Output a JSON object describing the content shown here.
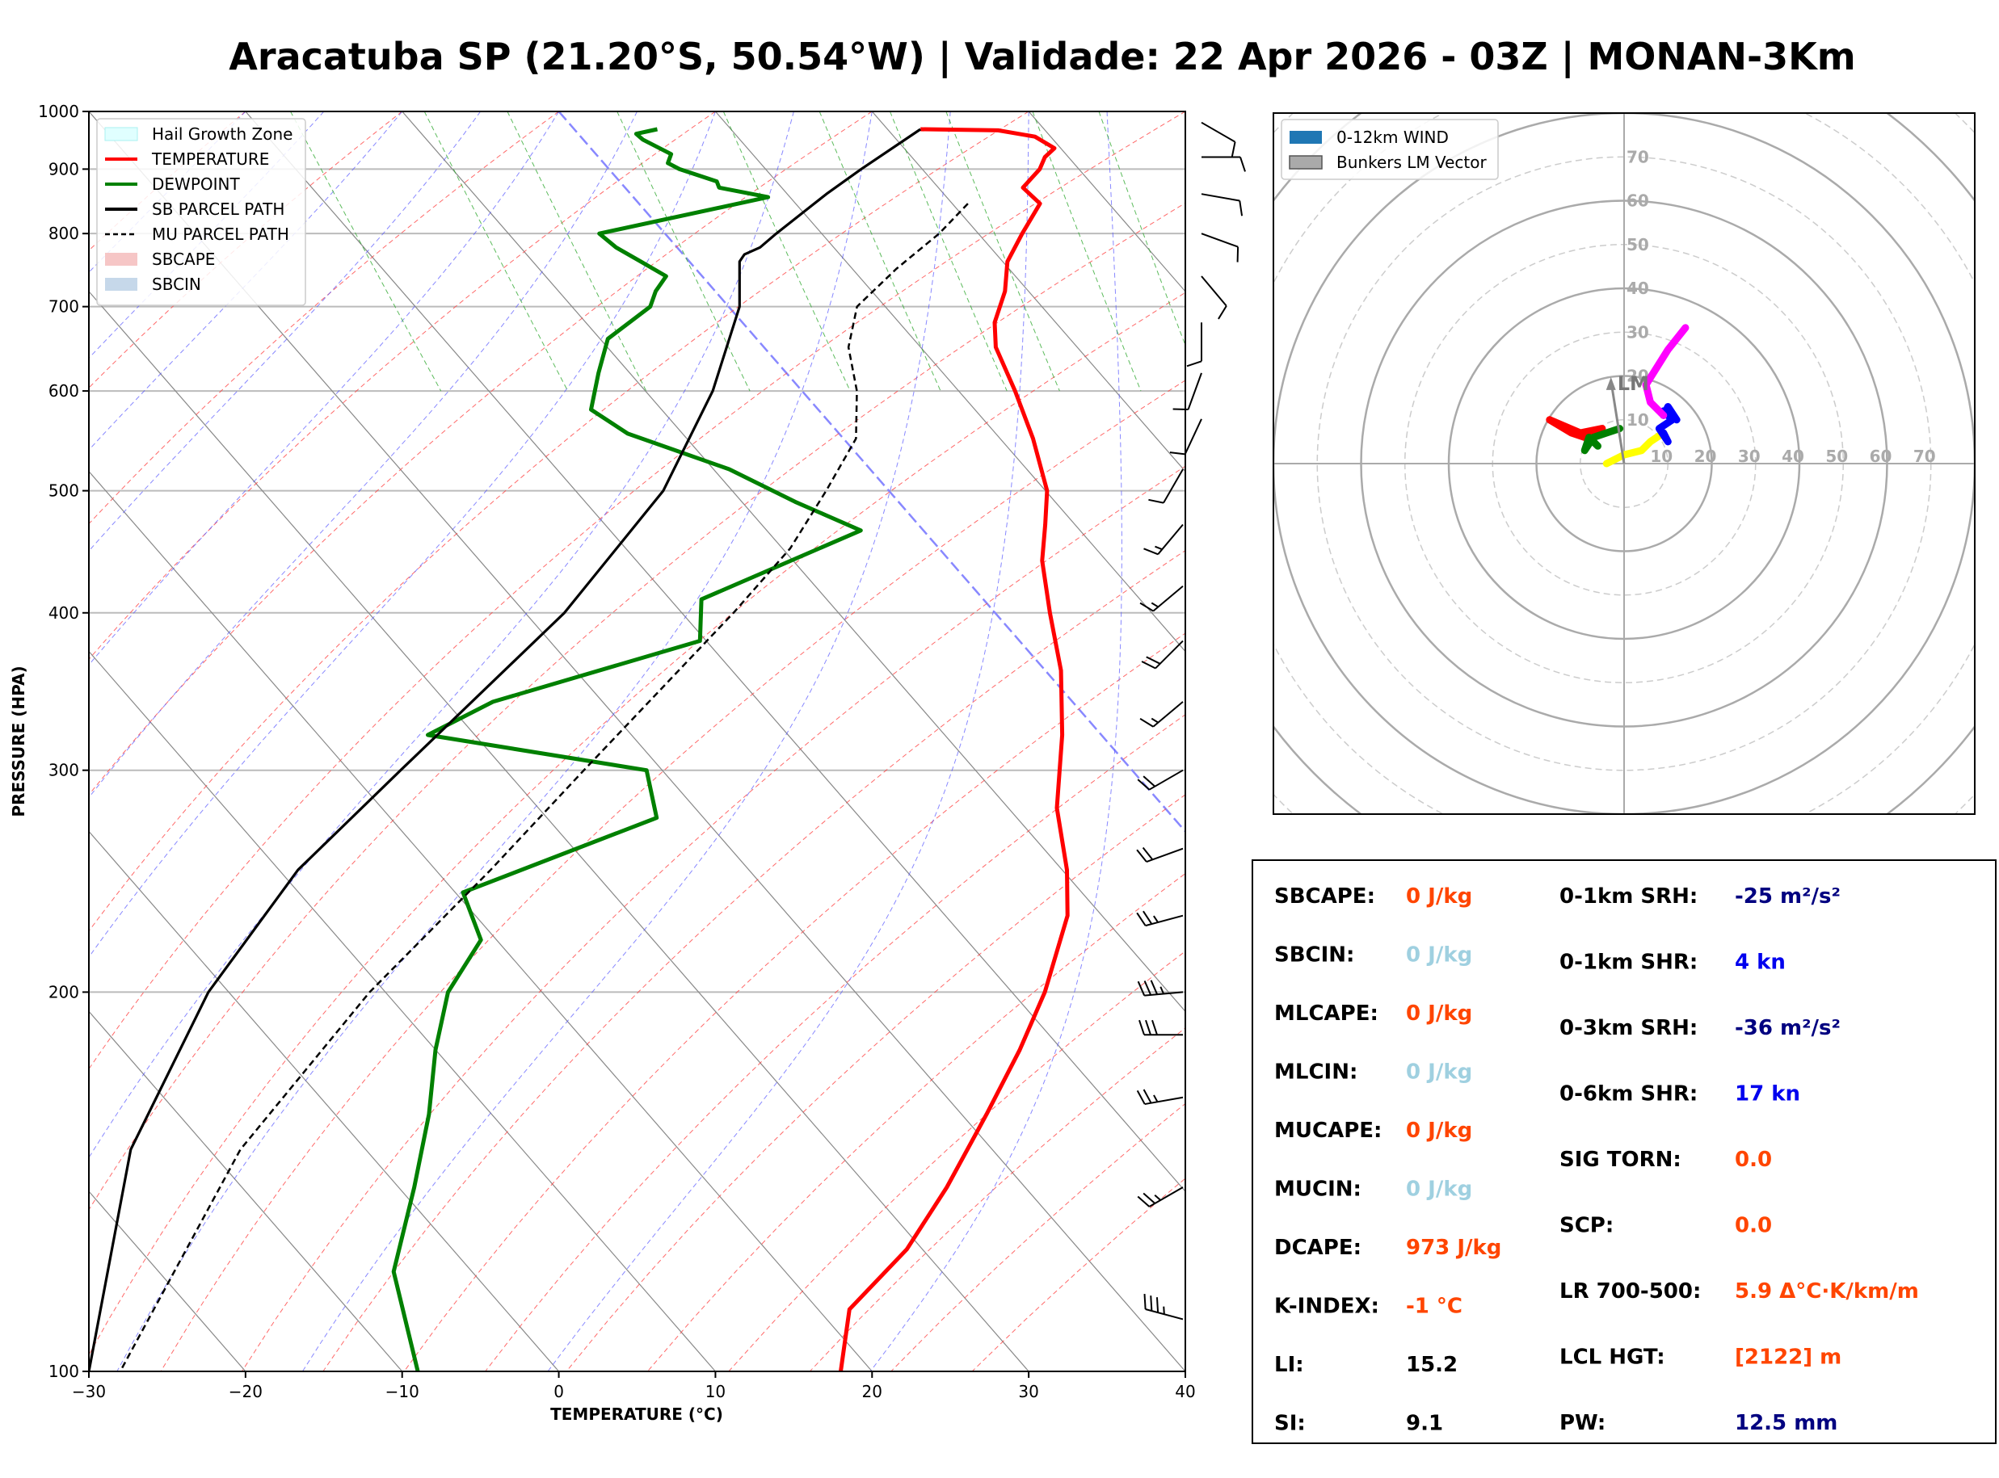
{
  "title": "Aracatuba SP (21.20°S, 50.54°W) | Validade: 22 Apr 2026 - 03Z | MONAN-3Km",
  "colors": {
    "temperature": "#ff0000",
    "dewpoint": "#008000",
    "parcel": "#000000",
    "hail_zone": "#e0ffff",
    "dry_adiabat": "#ff4444",
    "moist_adiabat": "#5555ff",
    "mixing_ratio": "#33aa33",
    "isotherm": "#888888",
    "zero_isotherm": "#8888ff",
    "hodo_ring": "#aaaaaa",
    "label_black": "#000000",
    "value_red": "#ff4500",
    "value_lightblue": "#9fd0e0",
    "value_navy": "#000080",
    "value_blue": "#0000ee"
  },
  "skewt": {
    "xlabel": "TEMPERATURE (°C)",
    "ylabel": "PRESSURE (HPA)",
    "x_ticks": [
      "−30",
      "−20",
      "−10",
      "0",
      "10",
      "20",
      "30",
      "40"
    ],
    "p_ticks": [
      "100",
      "200",
      "300",
      "400",
      "500",
      "600",
      "700",
      "800",
      "900",
      "1000"
    ],
    "legend": [
      {
        "label": "Hail Growth Zone",
        "kind": "patch-hail"
      },
      {
        "label": "TEMPERATURE",
        "kind": "line-red"
      },
      {
        "label": "DEWPOINT",
        "kind": "line-green"
      },
      {
        "label": "SB PARCEL PATH",
        "kind": "line-black"
      },
      {
        "label": "MU PARCEL PATH",
        "kind": "line-dash"
      },
      {
        "label": "SBCAPE",
        "kind": "patch-cape"
      },
      {
        "label": "SBCIN",
        "kind": "patch-cin"
      }
    ]
  },
  "hodograph": {
    "legend": [
      {
        "label": "0-12km WIND",
        "kind": "patch-blue"
      },
      {
        "label": "Bunkers LM Vector",
        "kind": "patch-gray"
      }
    ],
    "ring_labels": [
      "10",
      "20",
      "30",
      "40",
      "50",
      "60",
      "70"
    ],
    "lm_label": "LM"
  },
  "indices": {
    "left": [
      {
        "label": "SBCAPE:",
        "value": "0 J/kg",
        "tone": "red"
      },
      {
        "label": "SBCIN:",
        "value": "0 J/kg",
        "tone": "lightblue"
      },
      {
        "label": "MLCAPE:",
        "value": "0 J/kg",
        "tone": "red"
      },
      {
        "label": "MLCIN:",
        "value": "0 J/kg",
        "tone": "lightblue"
      },
      {
        "label": "MUCAPE:",
        "value": "0 J/kg",
        "tone": "red"
      },
      {
        "label": "MUCIN:",
        "value": "0 J/kg",
        "tone": "lightblue"
      },
      {
        "label": "DCAPE:",
        "value": "973 J/kg",
        "tone": "red"
      },
      {
        "label": "K-INDEX:",
        "value": "-1 °C",
        "tone": "red"
      },
      {
        "label": "LI:",
        "value": "15.2",
        "tone": "black"
      },
      {
        "label": "SI:",
        "value": "9.1",
        "tone": "black"
      }
    ],
    "right": [
      {
        "label": "0-1km SRH:",
        "value": "-25 m²/s²",
        "tone": "navy"
      },
      {
        "label": "0-1km SHR:",
        "value": "4 kn",
        "tone": "blue"
      },
      {
        "label": "0-3km SRH:",
        "value": "-36 m²/s²",
        "tone": "navy"
      },
      {
        "label": "0-6km SHR:",
        "value": "17 kn",
        "tone": "blue"
      },
      {
        "label": "SIG TORN:",
        "value": "0.0",
        "tone": "red"
      },
      {
        "label": "SCP:",
        "value": "0.0",
        "tone": "red"
      },
      {
        "label": "LR 700-500:",
        "value": "5.9 Δ°C·K/km/m",
        "tone": "red"
      },
      {
        "label": "LCL HGT:",
        "value": "[2122] m",
        "tone": "red"
      },
      {
        "label": "PW:",
        "value": "12.5 mm",
        "tone": "navy"
      }
    ]
  },
  "chart_data": [
    {
      "type": "line",
      "chart": "skew-t log-p",
      "xlabel": "TEMPERATURE (°C)",
      "ylabel": "PRESSURE (HPA)",
      "xlim": [
        -30,
        40
      ],
      "ylim_hpa": [
        1000,
        100
      ],
      "y_scale": "log",
      "skew_c_per_decade": 70,
      "grid": true,
      "legend_position": "upper-left",
      "hail_growth_zone_hpa": [
        377,
        555
      ],
      "series": [
        {
          "name": "TEMPERATURE",
          "p": [
            968,
            966,
            955,
            935,
            920,
            900,
            870,
            845,
            800,
            760,
            720,
            680,
            650,
            600,
            550,
            500,
            470,
            440,
            400,
            360,
            320,
            280,
            250,
            230,
            200,
            180,
            160,
            140,
            125,
            112,
            100
          ],
          "t": [
            22.1,
            27,
            29,
            29.6,
            28.5,
            27.5,
            25.4,
            25.6,
            22.8,
            20.3,
            18.5,
            16.1,
            14.8,
            13.6,
            12.1,
            10.1,
            8.1,
            5.9,
            3.5,
            1.0,
            -2.5,
            -6.9,
            -9.7,
            -12.2,
            -17.9,
            -22.7,
            -28.4,
            -35,
            -41,
            -48,
            -52
          ]
        },
        {
          "name": "DEWPOINT",
          "p": [
            968,
            960,
            950,
            925,
            910,
            900,
            880,
            870,
            855,
            800,
            780,
            760,
            740,
            720,
            700,
            660,
            620,
            580,
            555,
            520,
            490,
            465,
            410,
            380,
            340,
            320,
            300,
            275,
            240,
            220,
            200,
            180,
            160,
            140,
            120,
            100
          ],
          "t": [
            5.3,
            3.7,
            3.8,
            4.8,
            4.1,
            4.5,
            6.2,
            6.0,
            8.6,
            -4.2,
            -3.9,
            -3.1,
            -2.3,
            -3.8,
            -5.0,
            -9.5,
            -12.0,
            -14.5,
            -13.5,
            -9.0,
            -6.6,
            -4.0,
            -18.0,
            -20.4,
            -37.0,
            -43.0,
            -31.0,
            -33.0,
            -49.5,
            -51.0,
            -56.0,
            -60.0,
            -64.0,
            -69.0,
            -75.0,
            -79.0
          ]
        },
        {
          "name": "SB PARCEL PATH",
          "p": [
            968,
            900,
            860,
            800,
            780,
            770,
            760,
            700,
            600,
            500,
            400,
            300,
            250,
            200,
            150,
            100
          ],
          "t": [
            22.1,
            16.1,
            12.5,
            7.1,
            5.3,
            3.9,
            3.2,
            0.7,
            -5.7,
            -14.4,
            -27.5,
            -46.7,
            -58.8,
            -71.3,
            -85.0,
            -100.0
          ]
        },
        {
          "name": "MU PARCEL PATH",
          "p": [
            845,
            800,
            750,
            700,
            650,
            600,
            550,
            500,
            450,
            400,
            300,
            250,
            200,
            150,
            100
          ],
          "t": [
            21.0,
            17.5,
            12.8,
            8.2,
            5.4,
            3.5,
            0.8,
            -4.0,
            -9.5,
            -16.7,
            -35.0,
            -46.5,
            -61.0,
            -78.0,
            -98.0
          ]
        }
      ]
    },
    {
      "type": "line",
      "chart": "hodograph",
      "units": "kn",
      "range": [
        -80,
        80
      ],
      "series": [
        {
          "name": "segment-1",
          "color": "#ff0000",
          "u": [
            -17,
            -12,
            -9,
            -5,
            -10,
            -17
          ],
          "v": [
            10,
            7,
            6,
            8,
            7,
            10
          ]
        },
        {
          "name": "segment-2",
          "color": "#008000",
          "u": [
            -6,
            -8,
            -9,
            -7,
            -4,
            -1
          ],
          "v": [
            4,
            6,
            3,
            6,
            7,
            8
          ]
        },
        {
          "name": "segment-3",
          "color": "#ffff00",
          "u": [
            -4,
            0,
            4,
            6,
            9
          ],
          "v": [
            0,
            2,
            3,
            5,
            7
          ]
        },
        {
          "name": "segment-4",
          "color": "#0000ff",
          "u": [
            9,
            10,
            8,
            11,
            9,
            12,
            10,
            9
          ],
          "v": [
            7,
            5,
            8,
            10,
            12,
            10,
            13,
            11
          ]
        },
        {
          "name": "segment-5",
          "color": "#ff00ff",
          "u": [
            9,
            6,
            5,
            10,
            14
          ],
          "v": [
            11,
            14,
            18,
            26,
            31
          ]
        },
        {
          "name": "Bunkers LM Vector",
          "color": "#888888",
          "u": [
            0,
            -3
          ],
          "v": [
            0,
            19
          ]
        }
      ]
    }
  ],
  "wind_barbs": {
    "p": [
      110,
      140,
      165,
      185,
      200,
      230,
      260,
      300,
      340,
      380,
      420,
      470,
      520,
      570,
      620,
      680,
      740,
      800,
      860,
      920,
      980
    ],
    "dir_deg": [
      285,
      240,
      260,
      270,
      265,
      255,
      250,
      240,
      230,
      225,
      230,
      220,
      210,
      205,
      200,
      180,
      140,
      110,
      100,
      90,
      120
    ],
    "speed_kn": [
      35,
      25,
      25,
      30,
      35,
      25,
      20,
      20,
      15,
      20,
      15,
      15,
      10,
      10,
      10,
      10,
      10,
      10,
      10,
      10,
      10
    ]
  }
}
